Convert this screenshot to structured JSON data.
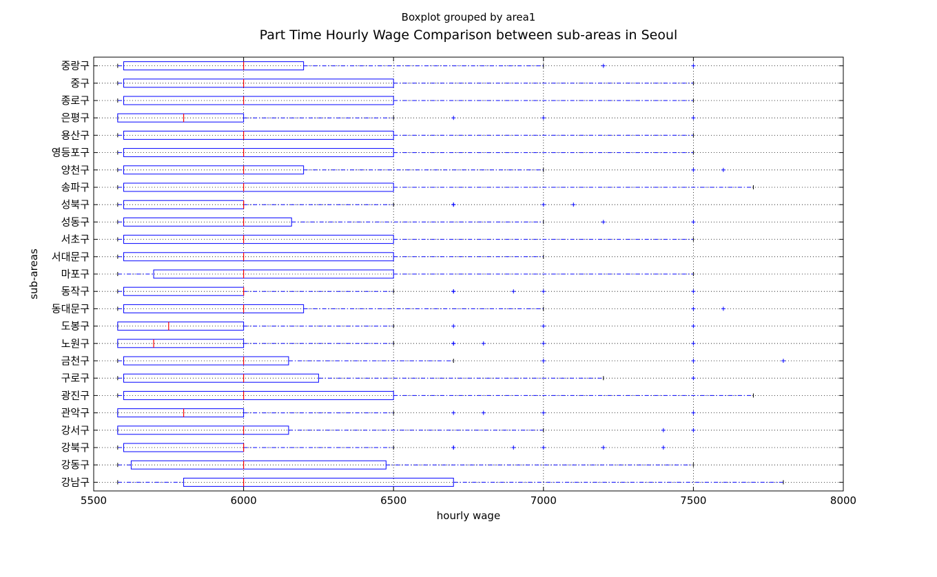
{
  "chart_data": {
    "type": "boxplot",
    "orientation": "horizontal",
    "suptitle": "Boxplot grouped by area1",
    "title": "Part Time Hourly Wage Comparison between sub-areas in Seoul",
    "xlabel": "hourly wage",
    "ylabel": "sub-areas",
    "xlim": [
      5500,
      8000
    ],
    "xticks": [
      5500,
      6000,
      6500,
      7000,
      7500,
      8000
    ],
    "grid": true,
    "colors": {
      "box": "#0000ff",
      "median": "#ff0000",
      "whisker": "#0000ff",
      "flier": "#0000ff",
      "grid": "#000000"
    },
    "categories": [
      "강남구",
      "강동구",
      "강북구",
      "강서구",
      "관악구",
      "광진구",
      "구로구",
      "금천구",
      "노원구",
      "도봉구",
      "동대문구",
      "동작구",
      "마포구",
      "서대문구",
      "서초구",
      "성동구",
      "성북구",
      "송파구",
      "양천구",
      "영등포구",
      "용산구",
      "은평구",
      "종로구",
      "중구",
      "중랑구"
    ],
    "boxes": [
      {
        "label": "강남구",
        "whislo": 5580,
        "q1": 5800,
        "med": 6000,
        "q3": 6700,
        "whishi": 7800,
        "fliers": []
      },
      {
        "label": "강동구",
        "whislo": 5580,
        "q1": 5625,
        "med": 6000,
        "q3": 6475,
        "whishi": 7500,
        "fliers": []
      },
      {
        "label": "강북구",
        "whislo": 5580,
        "q1": 5600,
        "med": 6000,
        "q3": 6000,
        "whishi": 6500,
        "fliers": [
          6700,
          6700,
          6900,
          7000,
          7200,
          7400
        ]
      },
      {
        "label": "강서구",
        "whislo": 5580,
        "q1": 5580,
        "med": 6000,
        "q3": 6150,
        "whishi": 7000,
        "fliers": [
          7400,
          7500
        ]
      },
      {
        "label": "관악구",
        "whislo": 5580,
        "q1": 5580,
        "med": 5800,
        "q3": 6000,
        "whishi": 6500,
        "fliers": [
          6700,
          6800,
          7000,
          7500
        ]
      },
      {
        "label": "광진구",
        "whislo": 5580,
        "q1": 5600,
        "med": 6000,
        "q3": 6500,
        "whishi": 7700,
        "fliers": []
      },
      {
        "label": "구로구",
        "whislo": 5580,
        "q1": 5600,
        "med": 6000,
        "q3": 6250,
        "whishi": 7200,
        "fliers": [
          7500
        ]
      },
      {
        "label": "금천구",
        "whislo": 5580,
        "q1": 5600,
        "med": 6000,
        "q3": 6150,
        "whishi": 6700,
        "fliers": [
          7000,
          7500,
          7800
        ]
      },
      {
        "label": "노원구",
        "whislo": 5580,
        "q1": 5580,
        "med": 5700,
        "q3": 6000,
        "whishi": 6500,
        "fliers": [
          6700,
          6700,
          6800,
          7000,
          7500
        ]
      },
      {
        "label": "도봉구",
        "whislo": 5580,
        "q1": 5580,
        "med": 5750,
        "q3": 6000,
        "whishi": 6500,
        "fliers": [
          6700,
          7000,
          7500
        ]
      },
      {
        "label": "동대문구",
        "whislo": 5580,
        "q1": 5600,
        "med": 6000,
        "q3": 6200,
        "whishi": 7000,
        "fliers": [
          7500,
          7600
        ]
      },
      {
        "label": "동작구",
        "whislo": 5580,
        "q1": 5600,
        "med": 6000,
        "q3": 6000,
        "whishi": 6500,
        "fliers": [
          6700,
          6700,
          6900,
          7000,
          7500
        ]
      },
      {
        "label": "마포구",
        "whislo": 5580,
        "q1": 5700,
        "med": 6000,
        "q3": 6500,
        "whishi": 7500,
        "fliers": []
      },
      {
        "label": "서대문구",
        "whislo": 5580,
        "q1": 5600,
        "med": 6000,
        "q3": 6500,
        "whishi": 7000,
        "fliers": []
      },
      {
        "label": "서초구",
        "whislo": 5580,
        "q1": 5600,
        "med": 6000,
        "q3": 6500,
        "whishi": 7500,
        "fliers": []
      },
      {
        "label": "성동구",
        "whislo": 5580,
        "q1": 5600,
        "med": 6000,
        "q3": 6160,
        "whishi": 7000,
        "fliers": [
          7200,
          7500
        ]
      },
      {
        "label": "성북구",
        "whislo": 5580,
        "q1": 5600,
        "med": 6000,
        "q3": 6000,
        "whishi": 6500,
        "fliers": [
          6700,
          6700,
          7000,
          7100
        ]
      },
      {
        "label": "송파구",
        "whislo": 5580,
        "q1": 5600,
        "med": 6000,
        "q3": 6500,
        "whishi": 7700,
        "fliers": []
      },
      {
        "label": "양천구",
        "whislo": 5580,
        "q1": 5600,
        "med": 6000,
        "q3": 6200,
        "whishi": 7000,
        "fliers": [
          7500,
          7600
        ]
      },
      {
        "label": "영등포구",
        "whislo": 5580,
        "q1": 5600,
        "med": 6000,
        "q3": 6500,
        "whishi": 7500,
        "fliers": []
      },
      {
        "label": "용산구",
        "whislo": 5580,
        "q1": 5600,
        "med": 6000,
        "q3": 6500,
        "whishi": 7500,
        "fliers": []
      },
      {
        "label": "은평구",
        "whislo": 5580,
        "q1": 5580,
        "med": 5800,
        "q3": 6000,
        "whishi": 6500,
        "fliers": [
          6700,
          7000,
          7500
        ]
      },
      {
        "label": "종로구",
        "whislo": 5580,
        "q1": 5600,
        "med": 6000,
        "q3": 6500,
        "whishi": 7500,
        "fliers": []
      },
      {
        "label": "중구",
        "whislo": 5580,
        "q1": 5600,
        "med": 6000,
        "q3": 6500,
        "whishi": 7500,
        "fliers": []
      },
      {
        "label": "중랑구",
        "whislo": 5580,
        "q1": 5600,
        "med": 6000,
        "q3": 6200,
        "whishi": 7000,
        "fliers": [
          7200,
          7500
        ]
      }
    ]
  }
}
